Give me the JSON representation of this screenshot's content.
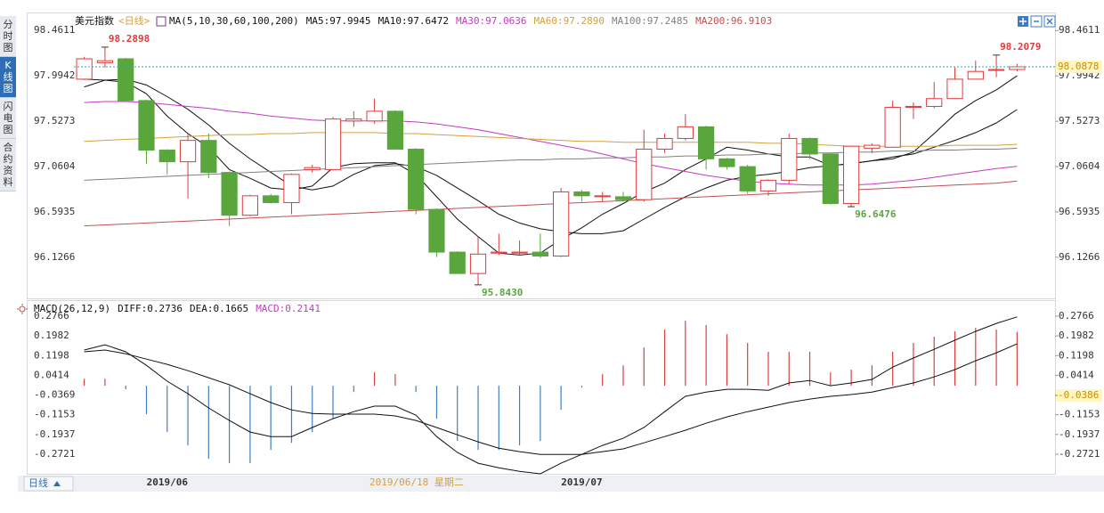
{
  "sidebar_tabs": [
    "分时图",
    "K线图",
    "闪电图",
    "合约资料"
  ],
  "period_button": "日线",
  "cursor_date": "2019/06/18 星期二",
  "chart_data": [
    {
      "type": "candlestick",
      "title": "美元指数",
      "subtitle": "<日线>",
      "ma_label": "MA(5,10,30,60,100,200)",
      "categories": [
        null,
        null,
        null,
        null,
        "2019/06",
        null,
        null,
        null,
        null,
        null,
        null,
        null,
        null,
        null,
        null,
        null,
        null,
        null,
        null,
        null,
        null,
        null,
        null,
        null,
        "2019/07",
        null,
        null,
        null,
        null,
        null,
        null,
        null,
        null,
        null,
        null,
        null,
        null,
        null,
        null,
        null,
        null,
        null,
        null,
        null,
        null,
        null
      ],
      "ohlc": [
        [
          97.96,
          98.19,
          97.95,
          98.17
        ],
        [
          98.13,
          98.2898,
          98.08,
          98.15
        ],
        [
          98.17,
          98.18,
          97.74,
          97.74
        ],
        [
          97.74,
          97.75,
          97.09,
          97.23
        ],
        [
          97.23,
          97.24,
          96.98,
          97.11
        ],
        [
          97.11,
          97.4,
          96.73,
          97.33
        ],
        [
          97.33,
          97.4,
          96.94,
          97.0
        ],
        [
          97.0,
          97.01,
          96.45,
          96.56
        ],
        [
          96.56,
          96.77,
          96.55,
          96.76
        ],
        [
          96.76,
          96.78,
          96.68,
          96.69
        ],
        [
          96.69,
          96.99,
          96.57,
          96.98
        ],
        [
          97.03,
          97.08,
          97.0,
          97.05
        ],
        [
          97.03,
          97.57,
          97.02,
          97.55
        ],
        [
          97.53,
          97.63,
          97.47,
          97.55
        ],
        [
          97.53,
          97.76,
          97.5,
          97.63
        ],
        [
          97.63,
          97.64,
          97.24,
          97.24
        ],
        [
          97.24,
          97.25,
          96.57,
          96.62
        ],
        [
          96.62,
          96.63,
          96.13,
          96.18
        ],
        [
          96.18,
          96.19,
          95.96,
          95.96
        ],
        [
          95.96,
          96.34,
          95.843,
          96.16
        ],
        [
          96.17,
          96.37,
          96.15,
          96.18
        ],
        [
          96.17,
          96.3,
          96.15,
          96.18
        ],
        [
          96.18,
          96.37,
          96.12,
          96.14
        ],
        [
          96.14,
          96.84,
          96.13,
          96.8
        ],
        [
          96.8,
          96.82,
          96.7,
          96.76
        ],
        [
          96.75,
          96.8,
          96.7,
          96.76
        ],
        [
          96.75,
          96.8,
          96.7,
          96.72
        ],
        [
          96.72,
          97.44,
          96.7,
          97.24
        ],
        [
          97.24,
          97.4,
          97.2,
          97.35
        ],
        [
          97.35,
          97.6,
          97.33,
          97.47
        ],
        [
          97.47,
          97.48,
          97.03,
          97.14
        ],
        [
          97.14,
          97.15,
          97.03,
          97.06
        ],
        [
          97.06,
          97.08,
          96.78,
          96.81
        ],
        [
          96.81,
          96.93,
          96.76,
          96.92
        ],
        [
          96.92,
          97.4,
          96.88,
          97.35
        ],
        [
          97.35,
          97.36,
          97.14,
          97.19
        ],
        [
          97.19,
          97.2,
          96.67,
          96.68
        ],
        [
          96.68,
          97.27,
          96.6476,
          97.27
        ],
        [
          97.25,
          97.3,
          97.2,
          97.28
        ],
        [
          97.26,
          97.74,
          97.26,
          97.67
        ],
        [
          97.67,
          97.72,
          97.55,
          97.68
        ],
        [
          97.68,
          97.93,
          97.66,
          97.76
        ],
        [
          97.76,
          98.08,
          97.76,
          97.96
        ],
        [
          97.96,
          98.15,
          97.96,
          98.04
        ],
        [
          98.05,
          98.2079,
          97.98,
          98.06
        ],
        [
          98.06,
          98.12,
          98.04,
          98.0878
        ]
      ],
      "up_color": "#e03a3a",
      "down_color": "#58a63c",
      "series": [
        {
          "name": "MA5:97.9945",
          "color": "#111111",
          "values": [
            97.88,
            97.95,
            97.93,
            97.81,
            97.58,
            97.4,
            97.26,
            97.03,
            96.94,
            96.84,
            96.82,
            96.86,
            97.05,
            97.09,
            97.1,
            97.1,
            96.98,
            96.75,
            96.52,
            96.34,
            96.17,
            96.15,
            96.17,
            96.31,
            96.43,
            96.57,
            96.68,
            96.8,
            96.89,
            97.03,
            97.14,
            97.26,
            97.23,
            97.19,
            97.16,
            97.16,
            97.07,
            97.09,
            97.12,
            97.14,
            97.21,
            97.4,
            97.6,
            97.74,
            97.85,
            97.9945
          ]
        },
        {
          "name": "MA10:97.6472",
          "color": "#111111",
          "values": [
            97.96,
            97.95,
            97.96,
            97.9,
            97.78,
            97.65,
            97.49,
            97.3,
            97.14,
            97.0,
            96.86,
            96.82,
            96.86,
            96.98,
            97.07,
            97.09,
            97.06,
            96.97,
            96.84,
            96.71,
            96.57,
            96.48,
            96.42,
            96.39,
            96.37,
            96.37,
            96.4,
            96.52,
            96.64,
            96.75,
            96.84,
            96.92,
            96.96,
            96.98,
            97.01,
            97.05,
            97.07,
            97.09,
            97.12,
            97.16,
            97.19,
            97.26,
            97.33,
            97.41,
            97.51,
            97.6472
          ]
        },
        {
          "name": "MA30:97.0636",
          "color": "#c03cc0",
          "values": [
            97.72,
            97.73,
            97.73,
            97.72,
            97.7,
            97.68,
            97.66,
            97.63,
            97.61,
            97.58,
            97.56,
            97.54,
            97.53,
            97.53,
            97.53,
            97.53,
            97.52,
            97.5,
            97.47,
            97.44,
            97.4,
            97.36,
            97.32,
            97.28,
            97.24,
            97.19,
            97.14,
            97.09,
            97.05,
            97.01,
            96.97,
            96.94,
            96.91,
            96.89,
            96.88,
            96.87,
            96.87,
            96.87,
            96.88,
            96.9,
            96.92,
            96.95,
            96.98,
            97.01,
            97.04,
            97.0636
          ]
        },
        {
          "name": "MA60:97.2890",
          "color": "#d4a040",
          "values": [
            97.32,
            97.33,
            97.34,
            97.35,
            97.36,
            97.37,
            97.38,
            97.39,
            97.39,
            97.4,
            97.4,
            97.41,
            97.41,
            97.41,
            97.41,
            97.4,
            97.4,
            97.39,
            97.38,
            97.37,
            97.36,
            97.35,
            97.34,
            97.33,
            97.32,
            97.32,
            97.31,
            97.31,
            97.31,
            97.31,
            97.31,
            97.31,
            97.31,
            97.3,
            97.3,
            97.29,
            97.28,
            97.27,
            97.27,
            97.27,
            97.27,
            97.27,
            97.28,
            97.28,
            97.28,
            97.289
          ]
        },
        {
          "name": "MA100:97.2485",
          "color": "#808080",
          "values": [
            96.92,
            96.93,
            96.94,
            96.95,
            96.96,
            96.97,
            96.98,
            96.99,
            97.0,
            97.01,
            97.02,
            97.03,
            97.04,
            97.05,
            97.06,
            97.07,
            97.08,
            97.09,
            97.1,
            97.11,
            97.12,
            97.13,
            97.13,
            97.14,
            97.14,
            97.15,
            97.15,
            97.16,
            97.16,
            97.17,
            97.17,
            97.18,
            97.18,
            97.19,
            97.19,
            97.2,
            97.2,
            97.21,
            97.21,
            97.22,
            97.22,
            97.23,
            97.23,
            97.24,
            97.24,
            97.2485
          ]
        },
        {
          "name": "MA200:96.9103",
          "color": "#c05050",
          "values": [
            96.45,
            96.46,
            96.47,
            96.48,
            96.49,
            96.5,
            96.51,
            96.52,
            96.53,
            96.54,
            96.55,
            96.56,
            96.57,
            96.58,
            96.59,
            96.6,
            96.61,
            96.62,
            96.63,
            96.64,
            96.65,
            96.66,
            96.67,
            96.68,
            96.69,
            96.7,
            96.71,
            96.72,
            96.73,
            96.74,
            96.75,
            96.76,
            96.77,
            96.78,
            96.79,
            96.8,
            96.81,
            96.82,
            96.83,
            96.84,
            96.85,
            96.86,
            96.87,
            96.88,
            96.89,
            96.9103
          ]
        }
      ],
      "annotations": [
        {
          "value": 98.2898,
          "label": "98.2898",
          "color": "#e03a3a"
        },
        {
          "value": 95.843,
          "label": "95.8430",
          "color": "#58a63c"
        },
        {
          "value": 96.6476,
          "label": "96.6476",
          "color": "#58a63c"
        },
        {
          "value": 98.2079,
          "label": "98.2079",
          "color": "#e03a3a"
        }
      ],
      "last_price": 98.0878,
      "ylim": [
        95.75,
        98.61
      ],
      "yticks": [
        98.4611,
        97.9942,
        97.5273,
        97.0604,
        96.5935,
        96.1266
      ],
      "grid": false
    },
    {
      "type": "macd",
      "title": "MACD(26,12,9)",
      "series": [
        {
          "name": "DIFF:0.2736",
          "color": "#111111",
          "values": [
            0.142,
            0.163,
            0.135,
            0.081,
            0.018,
            -0.032,
            -0.088,
            -0.138,
            -0.184,
            -0.202,
            -0.202,
            -0.166,
            -0.131,
            -0.103,
            -0.081,
            -0.081,
            -0.117,
            -0.202,
            -0.265,
            -0.308,
            -0.326,
            -0.34,
            -0.35,
            -0.308,
            -0.273,
            -0.237,
            -0.209,
            -0.166,
            -0.103,
            -0.042,
            -0.025,
            -0.014,
            -0.014,
            -0.018,
            0.011,
            0.021,
            0.0,
            0.011,
            0.025,
            0.074,
            0.11,
            0.145,
            0.181,
            0.216,
            0.248,
            0.2736
          ]
        },
        {
          "name": "DEA:0.1665",
          "color": "#111111",
          "values": [
            0.135,
            0.142,
            0.127,
            0.106,
            0.085,
            0.06,
            0.032,
            0.004,
            -0.032,
            -0.067,
            -0.096,
            -0.11,
            -0.113,
            -0.113,
            -0.113,
            -0.12,
            -0.138,
            -0.166,
            -0.195,
            -0.223,
            -0.248,
            -0.262,
            -0.273,
            -0.273,
            -0.273,
            -0.262,
            -0.251,
            -0.227,
            -0.202,
            -0.177,
            -0.149,
            -0.124,
            -0.103,
            -0.085,
            -0.067,
            -0.053,
            -0.042,
            -0.035,
            -0.025,
            -0.007,
            0.011,
            0.035,
            0.064,
            0.099,
            0.131,
            0.1665
          ]
        }
      ],
      "histogram": {
        "name": "MACD:0.2141",
        "color": "#c03cc0",
        "up_color": "#d84040",
        "down_color": "#3f7fc0",
        "values": [
          0.028,
          0.028,
          -0.014,
          -0.113,
          -0.184,
          -0.237,
          -0.29,
          -0.308,
          -0.308,
          -0.255,
          -0.227,
          -0.184,
          -0.131,
          -0.025,
          0.053,
          0.046,
          -0.025,
          -0.131,
          -0.219,
          -0.255,
          -0.255,
          -0.237,
          -0.219,
          -0.096,
          -0.007,
          0.046,
          0.081,
          0.152,
          0.223,
          0.258,
          0.241,
          0.205,
          0.17,
          0.135,
          0.135,
          0.135,
          0.053,
          0.064,
          0.081,
          0.135,
          0.17,
          0.195,
          0.216,
          0.23,
          0.223,
          0.2141
        ]
      },
      "cursor_value": -0.0386,
      "ylim": [
        -0.343,
        0.319
      ],
      "yticks": [
        0.2766,
        0.1982,
        0.1198,
        0.0414,
        -0.0369,
        -0.1153,
        -0.1937,
        -0.2721
      ],
      "grid": false
    }
  ]
}
